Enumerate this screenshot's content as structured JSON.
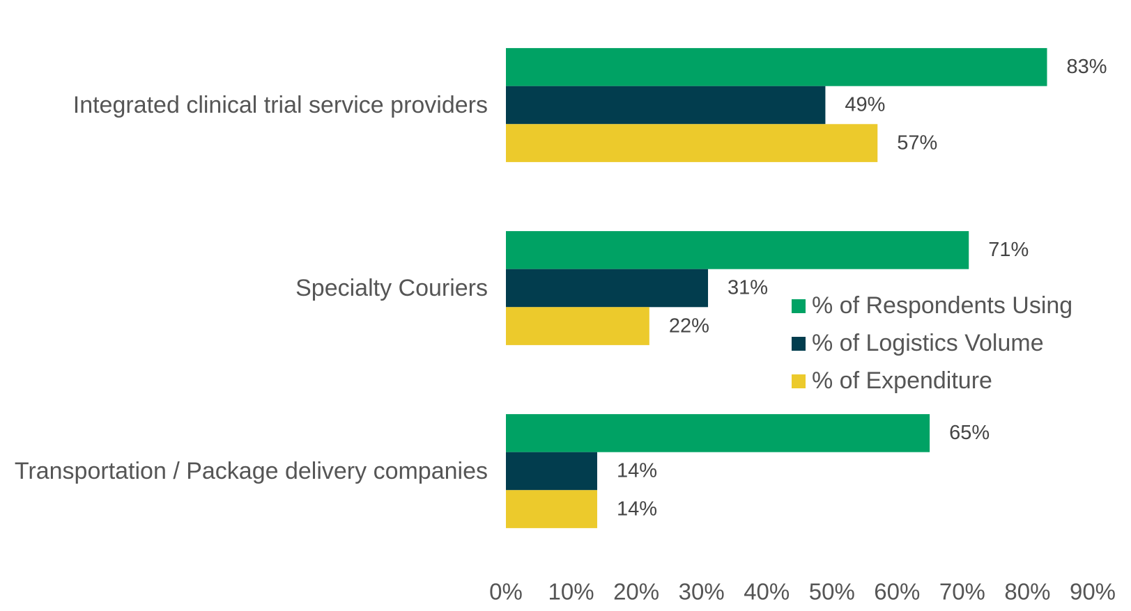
{
  "chart_data": {
    "type": "bar",
    "orientation": "horizontal",
    "categories": [
      "Integrated clinical trial service providers",
      "Specialty Couriers",
      "Transportation / Package delivery companies"
    ],
    "series": [
      {
        "name": "% of Respondents Using",
        "color": "#00a264",
        "values": [
          83,
          71,
          65
        ],
        "value_labels": [
          "83%",
          "71%",
          "65%"
        ]
      },
      {
        "name": "% of Logistics Volume",
        "color": "#023d4e",
        "values": [
          49,
          31,
          14
        ],
        "value_labels": [
          "49%",
          "31%",
          "14%"
        ]
      },
      {
        "name": "% of Expenditure",
        "color": "#ecca2c",
        "values": [
          57,
          22,
          14
        ],
        "value_labels": [
          "57%",
          "22%",
          "14%"
        ]
      }
    ],
    "xlim": [
      0,
      90
    ],
    "xticks": [
      {
        "value": 0,
        "label": "0%"
      },
      {
        "value": 10,
        "label": "10%"
      },
      {
        "value": 20,
        "label": "20%"
      },
      {
        "value": 30,
        "label": "30%"
      },
      {
        "value": 40,
        "label": "40%"
      },
      {
        "value": 50,
        "label": "50%"
      },
      {
        "value": 60,
        "label": "60%"
      },
      {
        "value": 70,
        "label": "70%"
      },
      {
        "value": 80,
        "label": "80%"
      },
      {
        "value": 90,
        "label": "90%"
      }
    ],
    "grid": false,
    "legend": "right"
  }
}
